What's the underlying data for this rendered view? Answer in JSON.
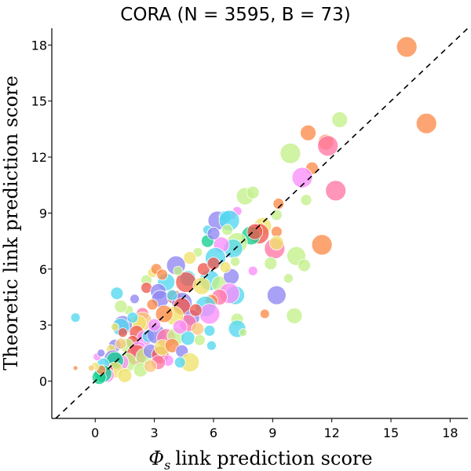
{
  "chart_data": {
    "type": "scatter",
    "title": "CORA (N = 3595, B = 73)",
    "xlabel": "link prediction score",
    "xlabel_symbol": "Φ",
    "xlabel_subscript": "s",
    "ylabel": "Theoretic link prediction score",
    "xlim": [
      -2.2,
      18.9
    ],
    "ylim": [
      -2.0,
      18.9
    ],
    "xticks": [
      0,
      3,
      6,
      9,
      12,
      15,
      18
    ],
    "yticks": [
      0,
      3,
      6,
      9,
      12,
      15,
      18
    ],
    "xtick_labels": [
      "0",
      "3",
      "6",
      "9",
      "12",
      "15",
      "18"
    ],
    "ytick_labels": [
      "0",
      "3",
      "6",
      "9",
      "12",
      "15",
      "18"
    ],
    "reference_line": "y = x",
    "grid": false,
    "palette": [
      "#fb8c4a",
      "#c3ef8b",
      "#ff77a5",
      "#f0e16a",
      "#f88efb",
      "#8f86f2",
      "#53d7ef",
      "#ee5a4f",
      "#14cf8f",
      "#f7c77a"
    ],
    "points": [
      {
        "x": 15.8,
        "y": 17.9,
        "size": 13,
        "color": "#fb8c4a"
      },
      {
        "x": 16.8,
        "y": 13.8,
        "size": 13,
        "color": "#fb8c4a"
      },
      {
        "x": 12.4,
        "y": 14.0,
        "size": 10,
        "color": "#c3ef8b"
      },
      {
        "x": 10.8,
        "y": 13.3,
        "size": 10,
        "color": "#fb8c4a"
      },
      {
        "x": 11.7,
        "y": 12.8,
        "size": 10,
        "color": "#fb8c4a"
      },
      {
        "x": 11.8,
        "y": 12.6,
        "size": 13,
        "color": "#ff77a5"
      },
      {
        "x": 9.9,
        "y": 12.2,
        "size": 13,
        "color": "#c3ef8b"
      },
      {
        "x": 11.0,
        "y": 11.4,
        "size": 8,
        "color": "#fb8c4a"
      },
      {
        "x": 10.5,
        "y": 10.9,
        "size": 13,
        "color": "#f88efb"
      },
      {
        "x": 12.2,
        "y": 10.2,
        "size": 13,
        "color": "#ff77a5"
      },
      {
        "x": 7.6,
        "y": 9.9,
        "size": 11,
        "color": "#c3ef8b"
      },
      {
        "x": 8.0,
        "y": 10.1,
        "size": 8,
        "color": "#c3ef8b"
      },
      {
        "x": 10.7,
        "y": 9.7,
        "size": 7,
        "color": "#c3ef8b"
      },
      {
        "x": 9.3,
        "y": 9.5,
        "size": 7,
        "color": "#fb8c4a"
      },
      {
        "x": 7.2,
        "y": 9.1,
        "size": 6,
        "color": "#f88efb"
      },
      {
        "x": 6.9,
        "y": 8.9,
        "size": 6,
        "color": "#f88efb"
      },
      {
        "x": 9.2,
        "y": 8.9,
        "size": 7,
        "color": "#c3ef8b"
      },
      {
        "x": 6.2,
        "y": 8.6,
        "size": 12,
        "color": "#8f86f2"
      },
      {
        "x": 6.6,
        "y": 8.8,
        "size": 8,
        "color": "#53d7ef"
      },
      {
        "x": 6.8,
        "y": 8.6,
        "size": 13,
        "color": "#53d7ef"
      },
      {
        "x": 5.7,
        "y": 8.1,
        "size": 6,
        "color": "#53d7ef"
      },
      {
        "x": 8.5,
        "y": 8.3,
        "size": 11,
        "color": "#f0e16a"
      },
      {
        "x": 8.3,
        "y": 7.9,
        "size": 13,
        "color": "#ee5a4f"
      },
      {
        "x": 7.9,
        "y": 7.8,
        "size": 12,
        "color": "#14cf8f"
      },
      {
        "x": 8.1,
        "y": 8.0,
        "size": 10,
        "color": "#ee5a4f"
      },
      {
        "x": 9.2,
        "y": 8.0,
        "size": 7,
        "color": "#fb8c4a"
      },
      {
        "x": 7.2,
        "y": 7.4,
        "size": 13,
        "color": "#c3ef8b"
      },
      {
        "x": 7.0,
        "y": 7.1,
        "size": 12,
        "color": "#53d7ef"
      },
      {
        "x": 6.4,
        "y": 7.3,
        "size": 10,
        "color": "#f88efb"
      },
      {
        "x": 6.1,
        "y": 6.6,
        "size": 13,
        "color": "#53d7ef"
      },
      {
        "x": 5.2,
        "y": 6.9,
        "size": 6,
        "color": "#c3ef8b"
      },
      {
        "x": 5.7,
        "y": 7.5,
        "size": 8,
        "color": "#14cf8f"
      },
      {
        "x": 9.1,
        "y": 7.1,
        "size": 13,
        "color": "#ff77a5"
      },
      {
        "x": 9.2,
        "y": 7.4,
        "size": 9,
        "color": "#f0e16a"
      },
      {
        "x": 10.2,
        "y": 6.7,
        "size": 12,
        "color": "#c3ef8b"
      },
      {
        "x": 11.5,
        "y": 7.3,
        "size": 13,
        "color": "#fb8c4a"
      },
      {
        "x": 8.9,
        "y": 6.3,
        "size": 8,
        "color": "#c3ef8b"
      },
      {
        "x": 10.6,
        "y": 6.2,
        "size": 8,
        "color": "#c3ef8b"
      },
      {
        "x": 4.1,
        "y": 6.2,
        "size": 12,
        "color": "#8f86f2"
      },
      {
        "x": 4.7,
        "y": 5.5,
        "size": 10,
        "color": "#53d7ef"
      },
      {
        "x": 4.6,
        "y": 5.3,
        "size": 13,
        "color": "#ee5a4f"
      },
      {
        "x": 5.8,
        "y": 5.4,
        "size": 13,
        "color": "#53d7ef"
      },
      {
        "x": 5.4,
        "y": 5.1,
        "size": 11,
        "color": "#f0e16a"
      },
      {
        "x": 6.3,
        "y": 5.2,
        "size": 10,
        "color": "#c3ef8b"
      },
      {
        "x": 6.9,
        "y": 5.6,
        "size": 10,
        "color": "#8f86f2"
      },
      {
        "x": 7.1,
        "y": 4.6,
        "size": 12,
        "color": "#53d7ef"
      },
      {
        "x": 6.8,
        "y": 4.7,
        "size": 13,
        "color": "#f88efb"
      },
      {
        "x": 6.3,
        "y": 4.5,
        "size": 10,
        "color": "#ff77a5"
      },
      {
        "x": 5.9,
        "y": 4.3,
        "size": 8,
        "color": "#fb8c4a"
      },
      {
        "x": 8.0,
        "y": 5.9,
        "size": 6,
        "color": "#f88efb"
      },
      {
        "x": 9.8,
        "y": 5.5,
        "size": 6,
        "color": "#c3ef8b"
      },
      {
        "x": 9.2,
        "y": 4.6,
        "size": 12,
        "color": "#8f86f2"
      },
      {
        "x": 10.1,
        "y": 3.5,
        "size": 10,
        "color": "#c3ef8b"
      },
      {
        "x": 8.6,
        "y": 3.6,
        "size": 6,
        "color": "#fb8c4a"
      },
      {
        "x": 7.2,
        "y": 3.3,
        "size": 8,
        "color": "#c3ef8b"
      },
      {
        "x": 7.2,
        "y": 2.8,
        "size": 11,
        "color": "#53d7ef"
      },
      {
        "x": 7.5,
        "y": 2.6,
        "size": 5,
        "color": "#c3ef8b"
      },
      {
        "x": 2.6,
        "y": 5.4,
        "size": 7,
        "color": "#c3ef8b"
      },
      {
        "x": 2.6,
        "y": 5.0,
        "size": 7,
        "color": "#ee5a4f"
      },
      {
        "x": 3.6,
        "y": 5.3,
        "size": 11,
        "color": "#53d7ef"
      },
      {
        "x": 3.2,
        "y": 4.8,
        "size": 10,
        "color": "#8f86f2"
      },
      {
        "x": 3.3,
        "y": 4.4,
        "size": 11,
        "color": "#8f86f2"
      },
      {
        "x": 4.0,
        "y": 4.5,
        "size": 9,
        "color": "#ee5a4f"
      },
      {
        "x": 4.4,
        "y": 4.2,
        "size": 13,
        "color": "#8f86f2"
      },
      {
        "x": 4.4,
        "y": 4.0,
        "size": 11,
        "color": "#ee5a4f"
      },
      {
        "x": 5.6,
        "y": 4.0,
        "size": 13,
        "color": "#53d7ef"
      },
      {
        "x": 5.8,
        "y": 3.6,
        "size": 13,
        "color": "#f88efb"
      },
      {
        "x": 4.9,
        "y": 3.4,
        "size": 10,
        "color": "#8f86f2"
      },
      {
        "x": 4.7,
        "y": 3.1,
        "size": 11,
        "color": "#ff77a5"
      },
      {
        "x": 4.0,
        "y": 3.5,
        "size": 12,
        "color": "#f0e16a"
      },
      {
        "x": 3.5,
        "y": 3.6,
        "size": 11,
        "color": "#fb8c4a"
      },
      {
        "x": 2.4,
        "y": 3.6,
        "size": 8,
        "color": "#ff77a5"
      },
      {
        "x": 2.4,
        "y": 3.2,
        "size": 12,
        "color": "#f7c77a"
      },
      {
        "x": 2.2,
        "y": 3.1,
        "size": 10,
        "color": "#f0e16a"
      },
      {
        "x": 1.7,
        "y": 3.8,
        "size": 6,
        "color": "#c3ef8b"
      },
      {
        "x": 1.4,
        "y": 3.0,
        "size": 12,
        "color": "#8f86f2"
      },
      {
        "x": 1.3,
        "y": 2.9,
        "size": 11,
        "color": "#53d7ef"
      },
      {
        "x": 1.4,
        "y": 2.6,
        "size": 6,
        "color": "#ee5a4f"
      },
      {
        "x": 1.0,
        "y": 2.9,
        "size": 5,
        "color": "#f0e16a"
      },
      {
        "x": 1.3,
        "y": 4.0,
        "size": 8,
        "color": "#c3ef8b"
      },
      {
        "x": 1.1,
        "y": 4.7,
        "size": 8,
        "color": "#53d7ef"
      },
      {
        "x": 2.9,
        "y": 5.8,
        "size": 6,
        "color": "#f0e16a"
      },
      {
        "x": 3.1,
        "y": 6.0,
        "size": 7,
        "color": "#fb8c4a"
      },
      {
        "x": 3.9,
        "y": 4.6,
        "size": 7,
        "color": "#53d7ef"
      },
      {
        "x": 2.9,
        "y": 4.1,
        "size": 7,
        "color": "#fb8c4a"
      },
      {
        "x": 2.1,
        "y": 2.6,
        "size": 9,
        "color": "#ee5a4f"
      },
      {
        "x": 2.5,
        "y": 2.3,
        "size": 10,
        "color": "#f88efb"
      },
      {
        "x": 2.7,
        "y": 2.4,
        "size": 8,
        "color": "#53d7ef"
      },
      {
        "x": 3.1,
        "y": 2.5,
        "size": 12,
        "color": "#8f86f2"
      },
      {
        "x": 3.6,
        "y": 2.3,
        "size": 12,
        "color": "#ff77a5"
      },
      {
        "x": 4.1,
        "y": 2.4,
        "size": 11,
        "color": "#c3ef8b"
      },
      {
        "x": 4.7,
        "y": 2.3,
        "size": 9,
        "color": "#53d7ef"
      },
      {
        "x": 5.3,
        "y": 2.2,
        "size": 7,
        "color": "#c3ef8b"
      },
      {
        "x": 5.8,
        "y": 2.7,
        "size": 7,
        "color": "#53d7ef"
      },
      {
        "x": 5.9,
        "y": 1.9,
        "size": 6,
        "color": "#53d7ef"
      },
      {
        "x": 1.9,
        "y": 2.1,
        "size": 8,
        "color": "#ee5a4f"
      },
      {
        "x": 1.6,
        "y": 1.9,
        "size": 9,
        "color": "#c3ef8b"
      },
      {
        "x": 2.2,
        "y": 1.7,
        "size": 10,
        "color": "#f88efb"
      },
      {
        "x": 2.1,
        "y": 1.4,
        "size": 13,
        "color": "#ee5a4f"
      },
      {
        "x": 2.5,
        "y": 1.3,
        "size": 11,
        "color": "#c3ef8b"
      },
      {
        "x": 2.8,
        "y": 1.6,
        "size": 9,
        "color": "#8f86f2"
      },
      {
        "x": 3.3,
        "y": 1.4,
        "size": 11,
        "color": "#ee5a4f"
      },
      {
        "x": 3.4,
        "y": 1.8,
        "size": 10,
        "color": "#f0e16a"
      },
      {
        "x": 3.9,
        "y": 1.9,
        "size": 9,
        "color": "#fb8c4a"
      },
      {
        "x": 4.4,
        "y": 1.6,
        "size": 8,
        "color": "#8f86f2"
      },
      {
        "x": 4.8,
        "y": 1.0,
        "size": 12,
        "color": "#f0e16a"
      },
      {
        "x": 4.3,
        "y": 1.0,
        "size": 7,
        "color": "#53d7ef"
      },
      {
        "x": 3.7,
        "y": 1.1,
        "size": 7,
        "color": "#f88efb"
      },
      {
        "x": 3.2,
        "y": 1.0,
        "size": 9,
        "color": "#ff77a5"
      },
      {
        "x": 1.0,
        "y": 1.9,
        "size": 8,
        "color": "#8f86f2"
      },
      {
        "x": 0.8,
        "y": 1.7,
        "size": 6,
        "color": "#f0e16a"
      },
      {
        "x": 1.3,
        "y": 2.0,
        "size": 7,
        "color": "#f7c77a"
      },
      {
        "x": 1.6,
        "y": 1.0,
        "size": 12,
        "color": "#c3ef8b"
      },
      {
        "x": 1.3,
        "y": 1.0,
        "size": 10,
        "color": "#f88efb"
      },
      {
        "x": 0.9,
        "y": 1.2,
        "size": 11,
        "color": "#8f86f2"
      },
      {
        "x": 1.0,
        "y": 1.1,
        "size": 11,
        "color": "#14cf8f"
      },
      {
        "x": 1.0,
        "y": 0.6,
        "size": 10,
        "color": "#f0e16a"
      },
      {
        "x": 0.6,
        "y": 0.6,
        "size": 8,
        "color": "#ff77a5"
      },
      {
        "x": 0.4,
        "y": 0.9,
        "size": 8,
        "color": "#53d7ef"
      },
      {
        "x": 0.6,
        "y": 0.3,
        "size": 9,
        "color": "#f88efb"
      },
      {
        "x": 0.4,
        "y": 0.4,
        "size": 11,
        "color": "#14cf8f"
      },
      {
        "x": 0.2,
        "y": 0.2,
        "size": 9,
        "color": "#14cf8f"
      },
      {
        "x": 0.3,
        "y": 0.6,
        "size": 6,
        "color": "#fb8c4a"
      },
      {
        "x": 1.5,
        "y": 0.3,
        "size": 9,
        "color": "#f0e16a"
      },
      {
        "x": 2.3,
        "y": 0.6,
        "size": 9,
        "color": "#c3ef8b"
      },
      {
        "x": 2.8,
        "y": 0.8,
        "size": 8,
        "color": "#f7c77a"
      },
      {
        "x": 0.0,
        "y": 0.8,
        "size": 5,
        "color": "#f0e16a"
      },
      {
        "x": 0.1,
        "y": 1.3,
        "size": 5,
        "color": "#f88efb"
      },
      {
        "x": 0.3,
        "y": 1.5,
        "size": 5,
        "color": "#8f86f2"
      },
      {
        "x": -0.2,
        "y": 0.7,
        "size": 4,
        "color": "#f7c77a"
      },
      {
        "x": -1.0,
        "y": 3.4,
        "size": 6,
        "color": "#53d7ef"
      },
      {
        "x": -1.0,
        "y": 0.7,
        "size": 3,
        "color": "#fb8c4a"
      },
      {
        "x": 5.1,
        "y": 3.8,
        "size": 8,
        "color": "#ee5a4f"
      },
      {
        "x": 5.5,
        "y": 6.0,
        "size": 8,
        "color": "#ee5a4f"
      },
      {
        "x": 6.0,
        "y": 6.3,
        "size": 8,
        "color": "#ee5a4f"
      },
      {
        "x": 6.6,
        "y": 6.1,
        "size": 7,
        "color": "#f0e16a"
      },
      {
        "x": 7.1,
        "y": 6.4,
        "size": 6,
        "color": "#c3ef8b"
      },
      {
        "x": 6.0,
        "y": 7.9,
        "size": 8,
        "color": "#8f86f2"
      },
      {
        "x": 6.7,
        "y": 8.1,
        "size": 7,
        "color": "#c3ef8b"
      },
      {
        "x": 4.8,
        "y": 6.6,
        "size": 8,
        "color": "#f0e16a"
      },
      {
        "x": 4.2,
        "y": 5.9,
        "size": 6,
        "color": "#c3ef8b"
      },
      {
        "x": 3.4,
        "y": 5.7,
        "size": 7,
        "color": "#fb8c4a"
      },
      {
        "x": 4.3,
        "y": 2.9,
        "size": 9,
        "color": "#f88efb"
      },
      {
        "x": 5.2,
        "y": 2.8,
        "size": 8,
        "color": "#f7c77a"
      },
      {
        "x": 3.0,
        "y": 3.0,
        "size": 8,
        "color": "#f88efb"
      },
      {
        "x": 2.0,
        "y": 4.4,
        "size": 6,
        "color": "#8f86f2"
      },
      {
        "x": 1.9,
        "y": 3.4,
        "size": 7,
        "color": "#53d7ef"
      }
    ]
  }
}
